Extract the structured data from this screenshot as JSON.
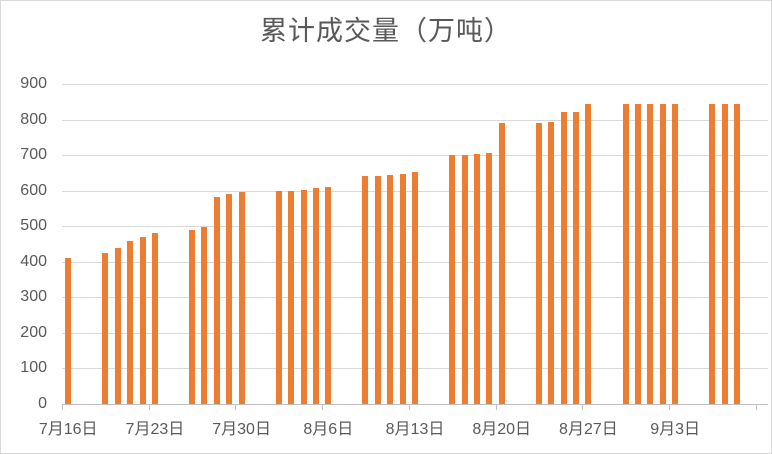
{
  "chart_data": {
    "type": "bar",
    "title": "累计成交量（万吨）",
    "xlabel": "",
    "ylabel": "",
    "ylim": [
      0,
      900
    ],
    "yticks": [
      0,
      100,
      200,
      300,
      400,
      500,
      600,
      700,
      800,
      900
    ],
    "grid": true,
    "legend": false,
    "bar_color": "#ed7d31",
    "x_label_interval_days": 7,
    "x_tick_labels": [
      "7月16日",
      "7月23日",
      "7月30日",
      "8月6日",
      "8月13日",
      "8月20日",
      "8月27日",
      "9月3日"
    ],
    "days": [
      {
        "date": "7月16日",
        "value": 410
      },
      {
        "date": "7月17日",
        "value": null
      },
      {
        "date": "7月18日",
        "value": null
      },
      {
        "date": "7月19日",
        "value": 424
      },
      {
        "date": "7月20日",
        "value": 438
      },
      {
        "date": "7月21日",
        "value": 459
      },
      {
        "date": "7月22日",
        "value": 471
      },
      {
        "date": "7月23日",
        "value": 482
      },
      {
        "date": "7月24日",
        "value": null
      },
      {
        "date": "7月25日",
        "value": null
      },
      {
        "date": "7月26日",
        "value": 490
      },
      {
        "date": "7月27日",
        "value": 497
      },
      {
        "date": "7月28日",
        "value": 581
      },
      {
        "date": "7月29日",
        "value": 590
      },
      {
        "date": "7月30日",
        "value": 595
      },
      {
        "date": "7月31日",
        "value": null
      },
      {
        "date": "8月1日",
        "value": null
      },
      {
        "date": "8月2日",
        "value": 599
      },
      {
        "date": "8月3日",
        "value": 600
      },
      {
        "date": "8月4日",
        "value": 602
      },
      {
        "date": "8月5日",
        "value": 607
      },
      {
        "date": "8月6日",
        "value": 611
      },
      {
        "date": "8月7日",
        "value": null
      },
      {
        "date": "8月8日",
        "value": null
      },
      {
        "date": "8月9日",
        "value": 640
      },
      {
        "date": "8月10日",
        "value": 641
      },
      {
        "date": "8月11日",
        "value": 644
      },
      {
        "date": "8月12日",
        "value": 647
      },
      {
        "date": "8月13日",
        "value": 652
      },
      {
        "date": "8月14日",
        "value": null
      },
      {
        "date": "8月15日",
        "value": null
      },
      {
        "date": "8月16日",
        "value": 701
      },
      {
        "date": "8月17日",
        "value": 701
      },
      {
        "date": "8月18日",
        "value": 703
      },
      {
        "date": "8月19日",
        "value": 705
      },
      {
        "date": "8月20日",
        "value": 791
      },
      {
        "date": "8月21日",
        "value": null
      },
      {
        "date": "8月22日",
        "value": null
      },
      {
        "date": "8月23日",
        "value": 791
      },
      {
        "date": "8月24日",
        "value": 793
      },
      {
        "date": "8月25日",
        "value": 820
      },
      {
        "date": "8月26日",
        "value": 822
      },
      {
        "date": "8月27日",
        "value": 845
      },
      {
        "date": "8月28日",
        "value": null
      },
      {
        "date": "8月29日",
        "value": null
      },
      {
        "date": "8月30日",
        "value": 845
      },
      {
        "date": "8月31日",
        "value": 845
      },
      {
        "date": "9月1日",
        "value": 845
      },
      {
        "date": "9月2日",
        "value": 845
      },
      {
        "date": "9月3日",
        "value": 845
      },
      {
        "date": "9月4日",
        "value": null
      },
      {
        "date": "9月5日",
        "value": null
      },
      {
        "date": "9月6日",
        "value": 845
      },
      {
        "date": "9月7日",
        "value": 845
      },
      {
        "date": "9月8日",
        "value": 845
      },
      {
        "date": "9月9日",
        "value": null
      },
      {
        "date": "9月10日",
        "value": null
      }
    ]
  },
  "colors": {
    "bar": "#ed7d31",
    "gridline": "#d9d9d9",
    "axis_line": "#bfbfbf",
    "text": "#595959",
    "background": "#ffffff",
    "border": "#d9d9d9"
  }
}
